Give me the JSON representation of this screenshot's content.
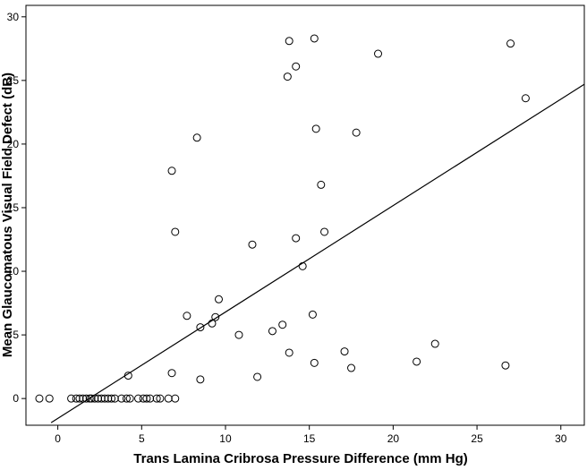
{
  "chart_data": {
    "type": "scatter",
    "title": "",
    "xlabel": "Trans Lamina Cribrosa Pressure  Difference (mm Hg)",
    "ylabel": "Mean Glaucomatous Visual Field Defect (dB)",
    "xlim": [
      -1.9,
      31.4
    ],
    "ylim": [
      -2.1,
      30.9
    ],
    "x_ticks": [
      0,
      5,
      10,
      15,
      20,
      25,
      30
    ],
    "y_ticks": [
      0,
      5,
      10,
      15,
      20,
      25,
      30
    ],
    "grid": false,
    "legend": "none",
    "marker": "open-circle",
    "points": [
      {
        "x": -1.1,
        "y": 0
      },
      {
        "x": -0.5,
        "y": 0
      },
      {
        "x": 0.8,
        "y": 0
      },
      {
        "x": 1.1,
        "y": 0
      },
      {
        "x": 1.3,
        "y": 0
      },
      {
        "x": 1.5,
        "y": 0
      },
      {
        "x": 1.7,
        "y": 0
      },
      {
        "x": 1.9,
        "y": 0
      },
      {
        "x": 2.0,
        "y": 0
      },
      {
        "x": 2.2,
        "y": 0
      },
      {
        "x": 2.4,
        "y": 0
      },
      {
        "x": 2.6,
        "y": 0
      },
      {
        "x": 2.8,
        "y": 0
      },
      {
        "x": 3.0,
        "y": 0
      },
      {
        "x": 3.2,
        "y": 0
      },
      {
        "x": 3.4,
        "y": 0
      },
      {
        "x": 3.8,
        "y": 0
      },
      {
        "x": 4.1,
        "y": 0
      },
      {
        "x": 4.3,
        "y": 0
      },
      {
        "x": 4.8,
        "y": 0
      },
      {
        "x": 5.1,
        "y": 0
      },
      {
        "x": 5.3,
        "y": 0
      },
      {
        "x": 5.5,
        "y": 0
      },
      {
        "x": 5.9,
        "y": 0
      },
      {
        "x": 6.1,
        "y": 0
      },
      {
        "x": 6.6,
        "y": 0
      },
      {
        "x": 7.0,
        "y": 0
      },
      {
        "x": 4.2,
        "y": 1.8
      },
      {
        "x": 6.8,
        "y": 2.0
      },
      {
        "x": 8.5,
        "y": 1.5
      },
      {
        "x": 11.9,
        "y": 1.7
      },
      {
        "x": 8.5,
        "y": 5.6
      },
      {
        "x": 7.7,
        "y": 6.5
      },
      {
        "x": 9.2,
        "y": 5.9
      },
      {
        "x": 9.4,
        "y": 6.4
      },
      {
        "x": 9.6,
        "y": 7.8
      },
      {
        "x": 10.8,
        "y": 5.0
      },
      {
        "x": 12.8,
        "y": 5.3
      },
      {
        "x": 13.4,
        "y": 5.8
      },
      {
        "x": 13.8,
        "y": 3.6
      },
      {
        "x": 15.2,
        "y": 6.6
      },
      {
        "x": 15.3,
        "y": 2.8
      },
      {
        "x": 17.1,
        "y": 3.7
      },
      {
        "x": 17.5,
        "y": 2.4
      },
      {
        "x": 21.4,
        "y": 2.9
      },
      {
        "x": 22.5,
        "y": 4.3
      },
      {
        "x": 26.7,
        "y": 2.6
      },
      {
        "x": 14.6,
        "y": 10.4
      },
      {
        "x": 11.6,
        "y": 12.1
      },
      {
        "x": 14.2,
        "y": 12.6
      },
      {
        "x": 15.9,
        "y": 13.1
      },
      {
        "x": 7.0,
        "y": 13.1
      },
      {
        "x": 15.7,
        "y": 16.8
      },
      {
        "x": 6.8,
        "y": 17.9
      },
      {
        "x": 8.3,
        "y": 20.5
      },
      {
        "x": 15.4,
        "y": 21.2
      },
      {
        "x": 17.8,
        "y": 20.9
      },
      {
        "x": 13.7,
        "y": 25.3
      },
      {
        "x": 14.2,
        "y": 26.1
      },
      {
        "x": 13.8,
        "y": 28.1
      },
      {
        "x": 15.3,
        "y": 28.3
      },
      {
        "x": 19.1,
        "y": 27.1
      },
      {
        "x": 27.0,
        "y": 27.9
      },
      {
        "x": 27.9,
        "y": 23.6
      }
    ],
    "fit_line": {
      "x": [
        -0.4,
        31.4
      ],
      "y": [
        -1.9,
        24.7
      ]
    }
  }
}
